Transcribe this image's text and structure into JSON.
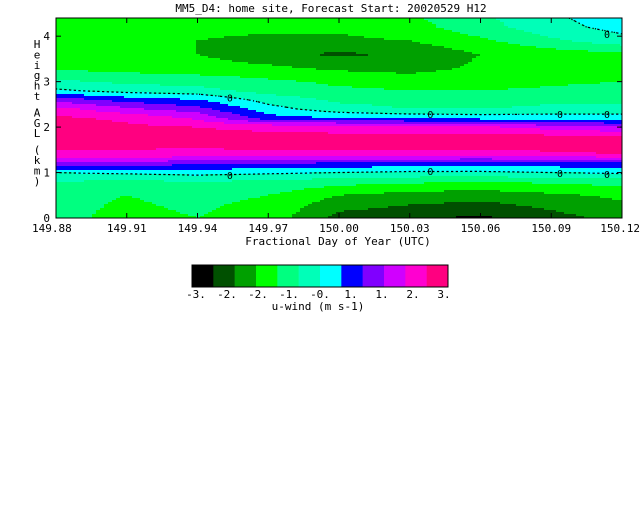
{
  "chart_data": {
    "type": "heatmap",
    "title": "MM5_D4: home site,  Forecast Start: 20020529 H12",
    "xlabel": "Fractional Day of Year (UTC)",
    "ylabel": "Height AGL (km)",
    "xlim": [
      149.88,
      150.12
    ],
    "ylim": [
      0,
      4.4
    ],
    "x_ticks": [
      "149.88",
      "149.91",
      "149.94",
      "149.97",
      "150.00",
      "150.03",
      "150.06",
      "150.09",
      "150.12"
    ],
    "y_ticks": [
      "0",
      "1",
      "2",
      "3",
      "4"
    ],
    "x": [
      149.88,
      149.91,
      149.94,
      149.97,
      150.0,
      150.03,
      150.06,
      150.09,
      150.12
    ],
    "y": [
      0,
      0.5,
      0.8,
      1.0,
      1.2,
      1.4,
      1.6,
      1.8,
      2.0,
      2.2,
      2.4,
      2.6,
      2.8,
      3.0,
      3.3,
      3.6,
      3.9,
      4.2,
      4.4
    ],
    "z": [
      [
        -0.9,
        -1.1,
        -1.0,
        -1.2,
        -2.2,
        -2.4,
        -2.6,
        -2.2,
        -1.8
      ],
      [
        -0.9,
        -1.0,
        -0.9,
        -1.0,
        -1.5,
        -1.7,
        -1.8,
        -1.6,
        -1.4
      ],
      [
        -0.5,
        -0.6,
        -0.5,
        -0.6,
        -0.8,
        -0.9,
        -1.0,
        -0.9,
        -0.8
      ],
      [
        0.0,
        0.1,
        0.2,
        0.1,
        0.0,
        -0.1,
        -0.1,
        0.0,
        0.1
      ],
      [
        1.4,
        1.3,
        1.1,
        1.0,
        0.9,
        0.8,
        0.7,
        0.8,
        0.9
      ],
      [
        2.4,
        2.4,
        2.3,
        2.3,
        2.3,
        2.3,
        2.3,
        2.4,
        2.5
      ],
      [
        2.6,
        2.6,
        2.6,
        2.7,
        2.7,
        2.7,
        2.7,
        2.7,
        2.7
      ],
      [
        2.6,
        2.6,
        2.6,
        2.6,
        2.6,
        2.6,
        2.6,
        2.6,
        2.5
      ],
      [
        2.7,
        2.6,
        2.5,
        2.4,
        2.3,
        2.2,
        2.1,
        1.8,
        1.5
      ],
      [
        2.6,
        2.4,
        1.9,
        0.7,
        0.5,
        0.4,
        0.3,
        0.3,
        0.3
      ],
      [
        2.2,
        1.6,
        1.2,
        0.2,
        -0.3,
        -0.5,
        -0.5,
        -0.4,
        -0.4
      ],
      [
        1.3,
        0.8,
        0.5,
        -0.2,
        -0.6,
        -0.7,
        -0.7,
        -0.6,
        -0.6
      ],
      [
        0.1,
        -0.2,
        -0.3,
        -0.7,
        -0.9,
        -1.0,
        -1.0,
        -0.9,
        -0.8
      ],
      [
        -0.4,
        -0.6,
        -0.7,
        -0.9,
        -1.1,
        -1.2,
        -1.2,
        -1.1,
        -1.0
      ],
      [
        -1.1,
        -1.2,
        -1.3,
        -1.4,
        -1.6,
        -1.7,
        -1.4,
        -1.3,
        -1.2
      ],
      [
        -1.3,
        -1.4,
        -1.5,
        -1.8,
        -2.1,
        -1.9,
        -1.5,
        -1.3,
        -1.1
      ],
      [
        -1.3,
        -1.4,
        -1.5,
        -1.6,
        -1.6,
        -1.5,
        -1.1,
        -0.6,
        -0.2
      ],
      [
        -1.2,
        -1.3,
        -1.4,
        -1.4,
        -1.4,
        -1.2,
        -0.7,
        -0.2,
        0.2
      ],
      [
        -1.2,
        -1.3,
        -1.4,
        -1.4,
        -1.4,
        -1.1,
        -0.6,
        -0.1,
        0.3
      ]
    ],
    "contour_label": "0",
    "colorbar": {
      "label": "u-wind (m s-1)",
      "bounds": [
        -3.0,
        -2.5,
        -2.0,
        -1.5,
        -1.0,
        -0.5,
        0.0,
        0.5,
        1.0,
        1.5,
        2.0,
        2.5,
        3.0
      ],
      "colors": [
        "#000000",
        "#005000",
        "#00a000",
        "#00ff00",
        "#00ff80",
        "#00ffb8",
        "#00ffff",
        "#0000ff",
        "#8000ff",
        "#d000ff",
        "#ff00d0",
        "#ff0080"
      ],
      "tick_labels": [
        "-3.",
        "-2.",
        "-2.",
        "-1.",
        "-0.",
        "1.",
        "1.",
        "2.",
        "3."
      ]
    },
    "grid": false,
    "legend": "bottom-center colorbar"
  }
}
